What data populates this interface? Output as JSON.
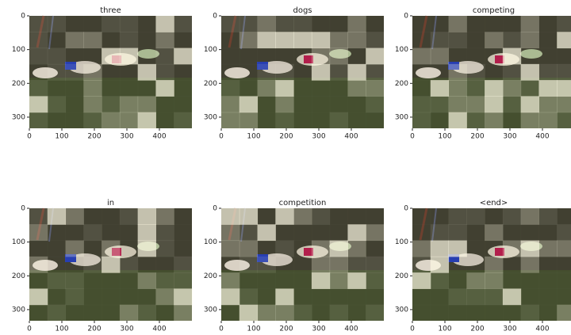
{
  "figure": {
    "axes": {
      "xlim": [
        0,
        500
      ],
      "ylim": [
        333,
        0
      ],
      "xticks": [
        0,
        100,
        200,
        300,
        400
      ],
      "yticks": [
        0,
        100,
        200,
        300
      ]
    },
    "panels": [
      {
        "title": "three"
      },
      {
        "title": "dogs"
      },
      {
        "title": "competing"
      },
      {
        "title": "in"
      },
      {
        "title": "competition"
      },
      {
        "title": "<end>"
      }
    ]
  }
}
